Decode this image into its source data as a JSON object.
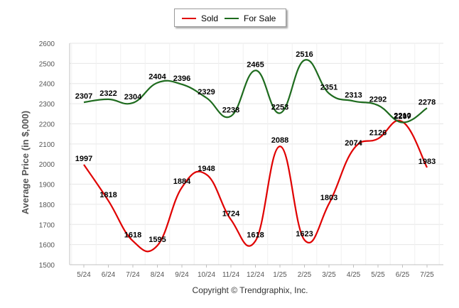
{
  "chart_data": {
    "type": "line",
    "ylabel": "Average Price (in $,000)",
    "xlabel": "",
    "ylim": [
      1500,
      2600
    ],
    "yticks": [
      1500,
      1600,
      1700,
      1800,
      1900,
      2000,
      2100,
      2200,
      2300,
      2400,
      2500,
      2600
    ],
    "categories": [
      "5/24",
      "6/24",
      "7/24",
      "8/24",
      "9/24",
      "10/24",
      "11/24",
      "12/24",
      "1/25",
      "2/25",
      "3/25",
      "4/25",
      "5/25",
      "6/25",
      "7/25"
    ],
    "series": [
      {
        "name": "Sold",
        "color": "#e00000",
        "values": [
          1997,
          1818,
          1618,
          1595,
          1884,
          1948,
          1724,
          1618,
          2088,
          1623,
          1803,
          2074,
          2126,
          2210,
          1983
        ]
      },
      {
        "name": "For Sale",
        "color": "#1e6b1e",
        "values": [
          2307,
          2322,
          2304,
          2404,
          2396,
          2329,
          2238,
          2465,
          2253,
          2516,
          2351,
          2313,
          2292,
          2207,
          2278
        ]
      }
    ],
    "legend": "top-center",
    "grid": true
  },
  "footer": {
    "copyright": "Copyright © Trendgraphix, Inc."
  }
}
